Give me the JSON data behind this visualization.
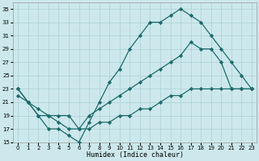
{
  "bg_color": "#cce8ec",
  "line_color": "#1e6b6b",
  "grid_color": "#aad0d5",
  "xlabel": "Humidex (Indice chaleur)",
  "xlim": [
    -0.5,
    23.5
  ],
  "ylim": [
    15,
    36
  ],
  "yticks": [
    15,
    17,
    19,
    21,
    23,
    25,
    27,
    29,
    31,
    33,
    35
  ],
  "xticks": [
    0,
    1,
    2,
    3,
    4,
    5,
    6,
    7,
    8,
    9,
    10,
    11,
    12,
    13,
    14,
    15,
    16,
    17,
    18,
    19,
    20,
    21,
    22,
    23
  ],
  "curve1_x": [
    0,
    1,
    2,
    3,
    4,
    5,
    6,
    7,
    8,
    9,
    10,
    11,
    12,
    13,
    14,
    15,
    16,
    17,
    18,
    19,
    20,
    21,
    22,
    23
  ],
  "curve1_y": [
    23,
    21,
    19,
    17,
    17,
    16,
    15,
    18,
    21,
    24,
    26,
    29,
    31,
    33,
    33,
    34,
    35,
    34,
    33,
    31,
    29,
    27,
    25,
    23
  ],
  "curve2_x": [
    0,
    1,
    2,
    3,
    4,
    5,
    6,
    7,
    8,
    9,
    10,
    11,
    12,
    13,
    14,
    15,
    16,
    17,
    18,
    19,
    20,
    21,
    22,
    23
  ],
  "curve2_y": [
    23,
    21,
    19,
    19,
    19,
    19,
    17,
    19,
    20,
    21,
    22,
    23,
    24,
    25,
    26,
    27,
    28,
    30,
    29,
    29,
    27,
    23,
    23,
    23
  ],
  "curve3_x": [
    0,
    1,
    2,
    3,
    4,
    5,
    6,
    7,
    8,
    9,
    10,
    11,
    12,
    13,
    14,
    15,
    16,
    17,
    18,
    19,
    20,
    21,
    22,
    23
  ],
  "curve3_y": [
    22,
    21,
    20,
    19,
    18,
    17,
    17,
    17,
    18,
    18,
    19,
    19,
    20,
    20,
    21,
    22,
    22,
    23,
    23,
    23,
    23,
    23,
    23,
    23
  ]
}
